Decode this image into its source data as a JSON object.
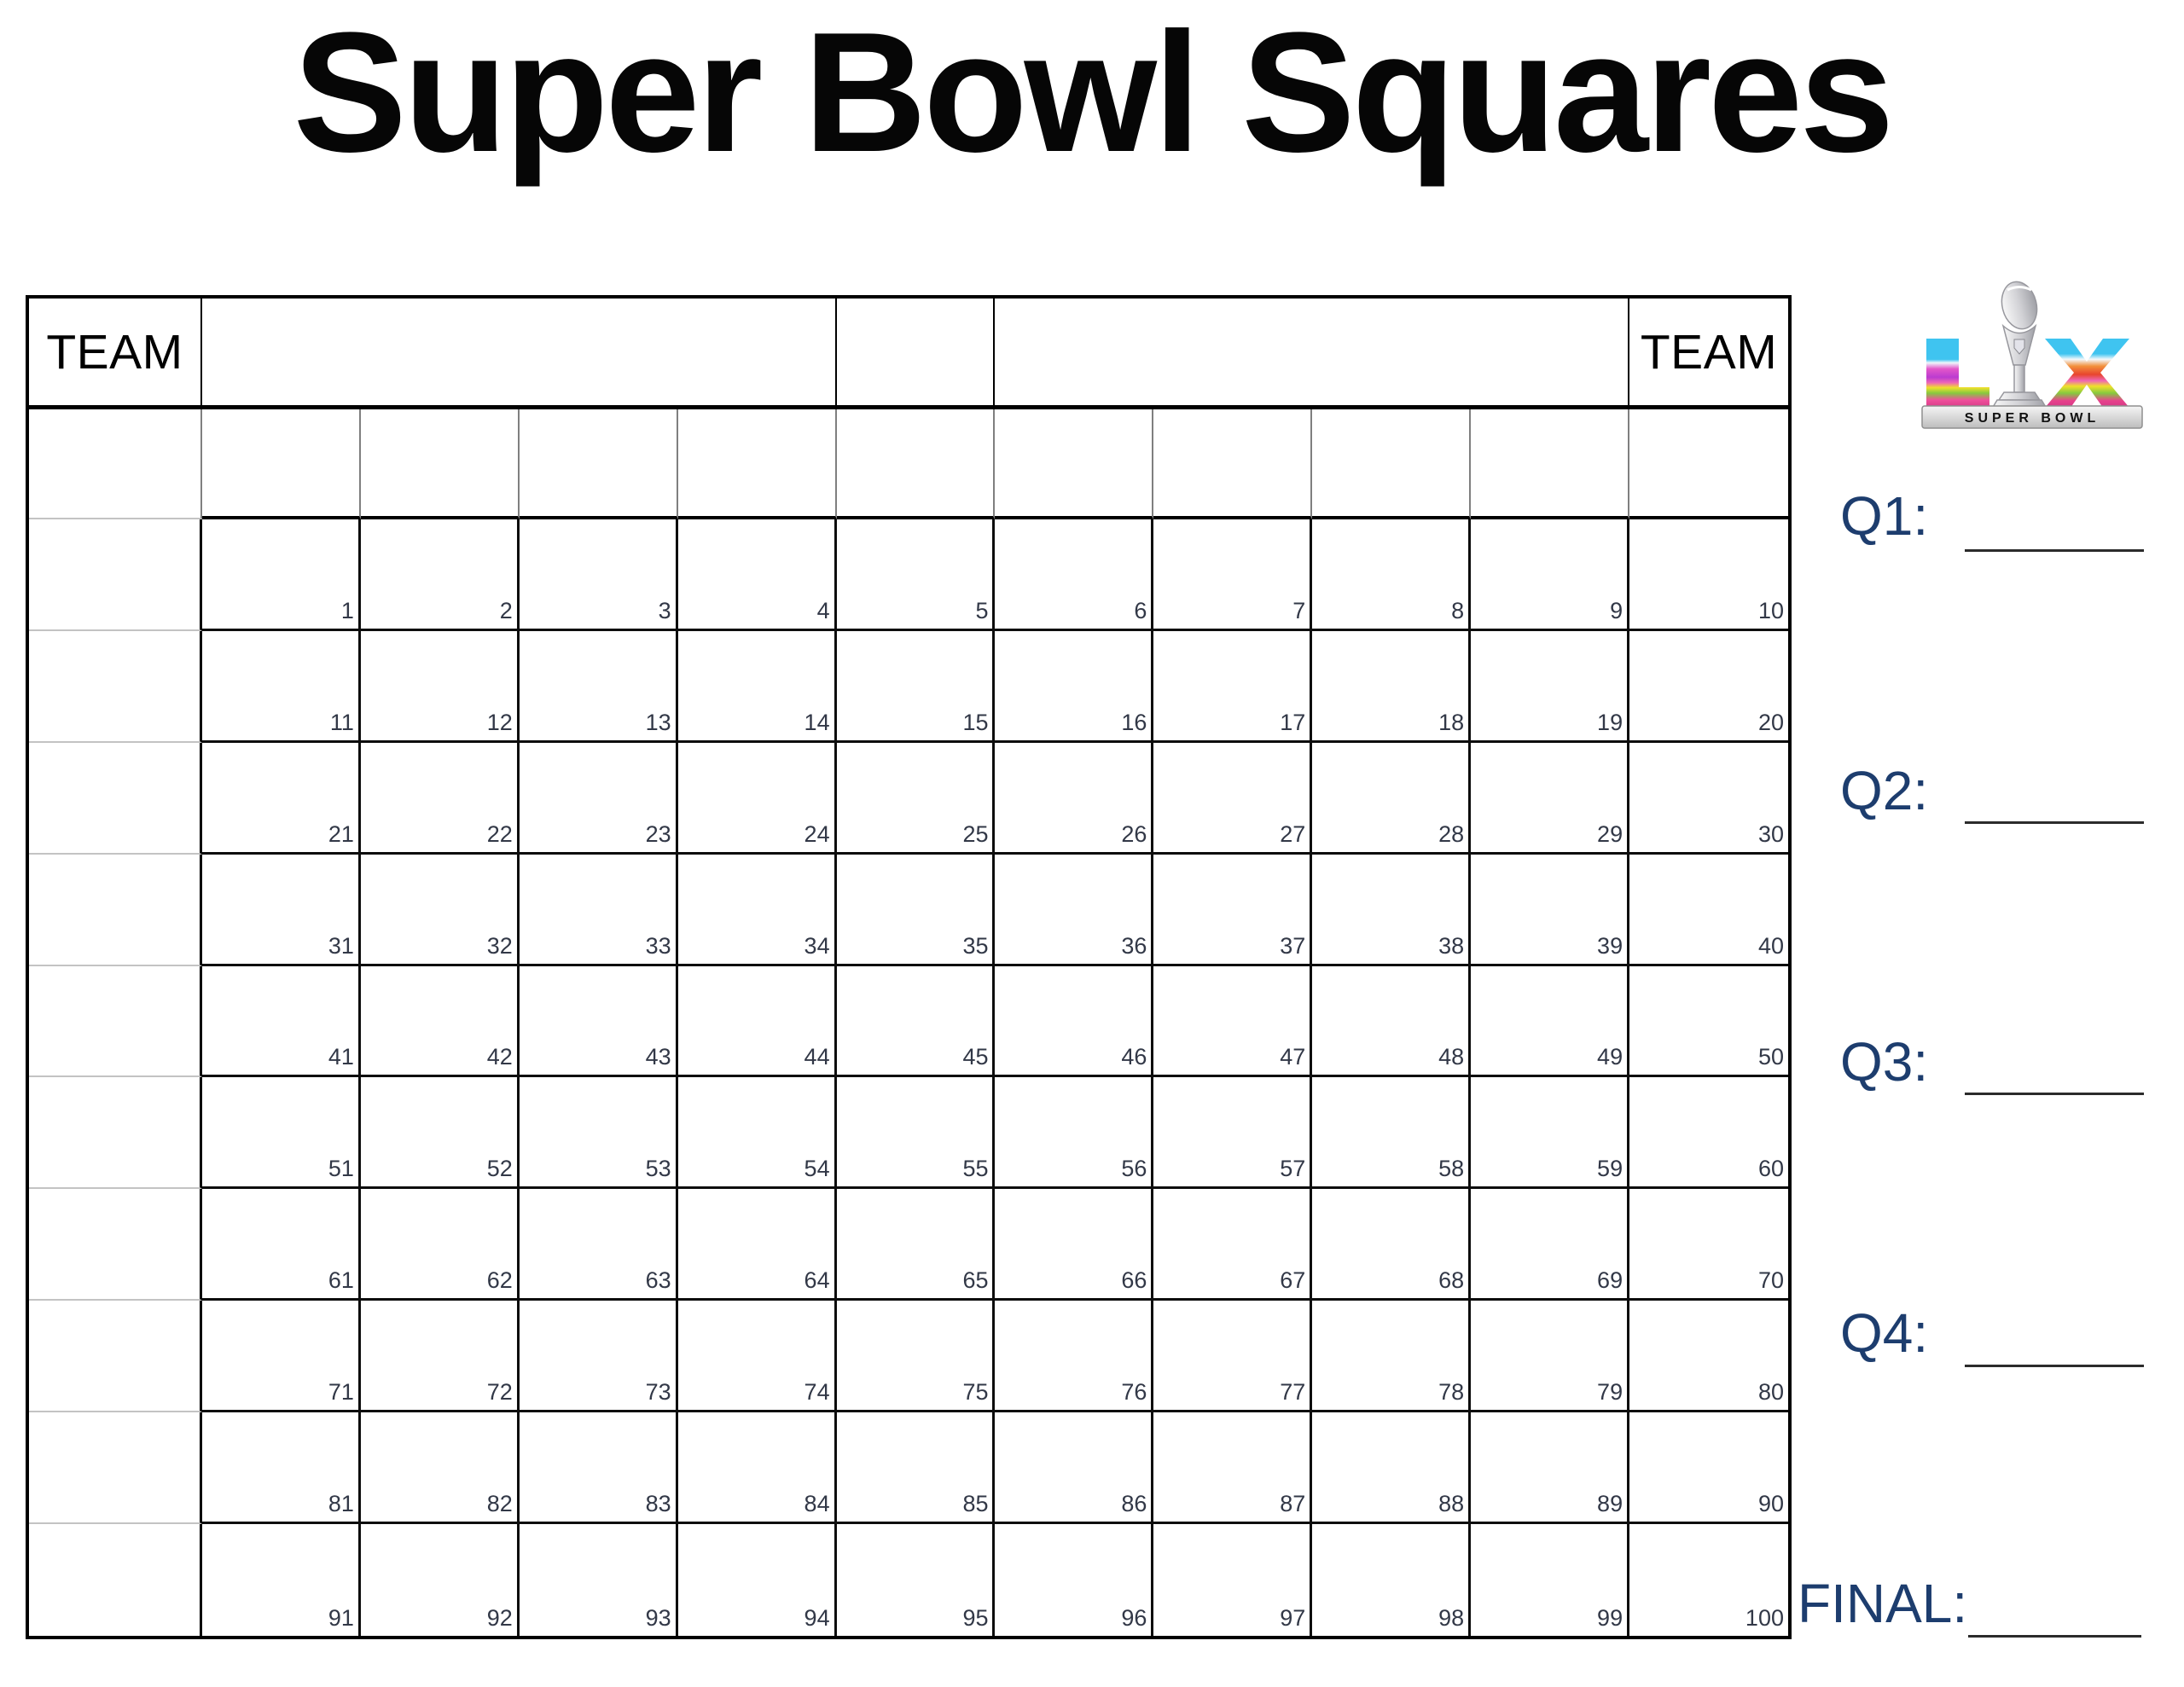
{
  "title": "Super Bowl Squares",
  "board": {
    "team_label_left": "TEAM",
    "team_label_right": "TEAM",
    "rows": 10,
    "cols": 10,
    "square_numbers": [
      1,
      2,
      3,
      4,
      5,
      6,
      7,
      8,
      9,
      10,
      11,
      12,
      13,
      14,
      15,
      16,
      17,
      18,
      19,
      20,
      21,
      22,
      23,
      24,
      25,
      26,
      27,
      28,
      29,
      30,
      31,
      32,
      33,
      34,
      35,
      36,
      37,
      38,
      39,
      40,
      41,
      42,
      43,
      44,
      45,
      46,
      47,
      48,
      49,
      50,
      51,
      52,
      53,
      54,
      55,
      56,
      57,
      58,
      59,
      60,
      61,
      62,
      63,
      64,
      65,
      66,
      67,
      68,
      69,
      70,
      71,
      72,
      73,
      74,
      75,
      76,
      77,
      78,
      79,
      80,
      81,
      82,
      83,
      84,
      85,
      86,
      87,
      88,
      89,
      90,
      91,
      92,
      93,
      94,
      95,
      96,
      97,
      98,
      99,
      100
    ]
  },
  "score_lines": {
    "q1": "Q1:",
    "q2": "Q2:",
    "q3": "Q3:",
    "q4": "Q4:",
    "final": "FINAL:"
  },
  "logo": {
    "letters": "LIX",
    "banner_text": "SUPER BOWL",
    "colors": {
      "cyan": "#3fc4f0",
      "magenta": "#e8418d",
      "purple": "#bb3bd0",
      "yellow": "#efe12b",
      "green": "#86c93f",
      "orange": "#f2903b",
      "silver": "#c8c8cc"
    }
  },
  "colors": {
    "label_navy": "#1d3d6e",
    "grid_line_black": "#000000",
    "grid_line_gray": "#7f7f7f",
    "grid_line_light": "#c3c3c3",
    "square_number": "#323847",
    "title_black": "#060606"
  }
}
